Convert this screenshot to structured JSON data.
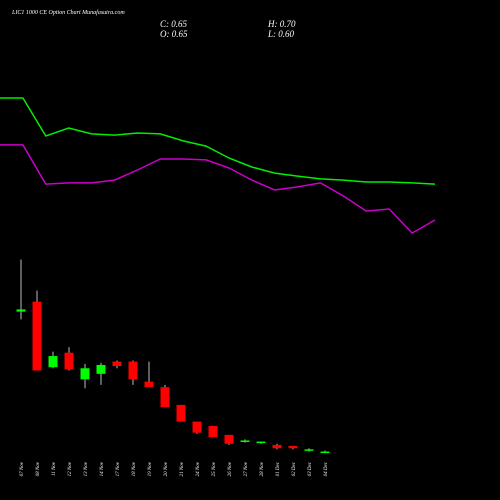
{
  "chart_data": {
    "type": "candlestick",
    "title": "LIC1 1000  CE Option  Chart Munafasutra.com",
    "info": {
      "close": "C: 0.65",
      "high": "H: 0.70",
      "open": "O: 0.65",
      "low": "L: 0.60"
    },
    "categories": [
      "07 Nov",
      "08 Nov",
      "11 Nov",
      "12 Nov",
      "13 Nov",
      "14 Nov",
      "17 Nov",
      "18 Nov",
      "19 Nov",
      "20 Nov",
      "21 Nov",
      "24 Nov",
      "25 Nov",
      "26 Nov",
      "27 Nov",
      "28 Nov",
      "01 Dec",
      "02 Dec",
      "03 Dec",
      "04 Dec"
    ],
    "open": [
      6.95,
      7.4,
      4.45,
      5.1,
      3.9,
      4.15,
      4.7,
      4.7,
      3.8,
      3.55,
      2.75,
      2.0,
      1.8,
      1.4,
      1.1,
      1.05,
      0.95,
      0.9,
      0.7,
      0.65
    ],
    "high": [
      9.3,
      7.9,
      5.15,
      5.35,
      4.6,
      4.65,
      4.75,
      4.75,
      4.7,
      3.65,
      2.75,
      2.0,
      1.8,
      1.4,
      1.2,
      1.1,
      1.0,
      0.9,
      0.8,
      0.7
    ],
    "low": [
      6.6,
      4.3,
      4.4,
      4.3,
      3.5,
      3.65,
      4.4,
      3.65,
      3.55,
      2.65,
      2.0,
      1.45,
      1.3,
      0.95,
      1.05,
      1.0,
      0.75,
      0.75,
      0.65,
      0.6
    ],
    "close": [
      7.05,
      4.3,
      4.95,
      4.35,
      4.4,
      4.55,
      4.5,
      3.9,
      3.55,
      2.65,
      2.0,
      1.5,
      1.3,
      1.0,
      1.15,
      1.1,
      0.8,
      0.8,
      0.75,
      0.65
    ],
    "up_color": "#00ff00",
    "down_color": "#ff0000",
    "ylim": [
      0,
      9.5
    ],
    "series": [
      {
        "color": "#00ee00",
        "axis": "y2",
        "values": [
          80,
          80,
          60,
          64.2,
          61.1,
          60.5,
          61.6,
          61.1,
          57.4,
          54.7,
          48.4,
          43.7,
          40.5,
          38.9,
          37.4,
          36.8,
          35.8,
          35.8,
          35.3,
          34.7
        ]
      },
      {
        "color": "#cc00cc",
        "axis": "y2",
        "values": [
          55.3,
          55.3,
          34.7,
          35.3,
          35.3,
          36.8,
          42.1,
          47.9,
          47.9,
          47.4,
          43.2,
          36.8,
          31.6,
          33.2,
          35.3,
          28.4,
          20.5,
          21.6,
          8.9,
          15.8
        ]
      }
    ],
    "y2lim": [
      0,
      100
    ]
  }
}
